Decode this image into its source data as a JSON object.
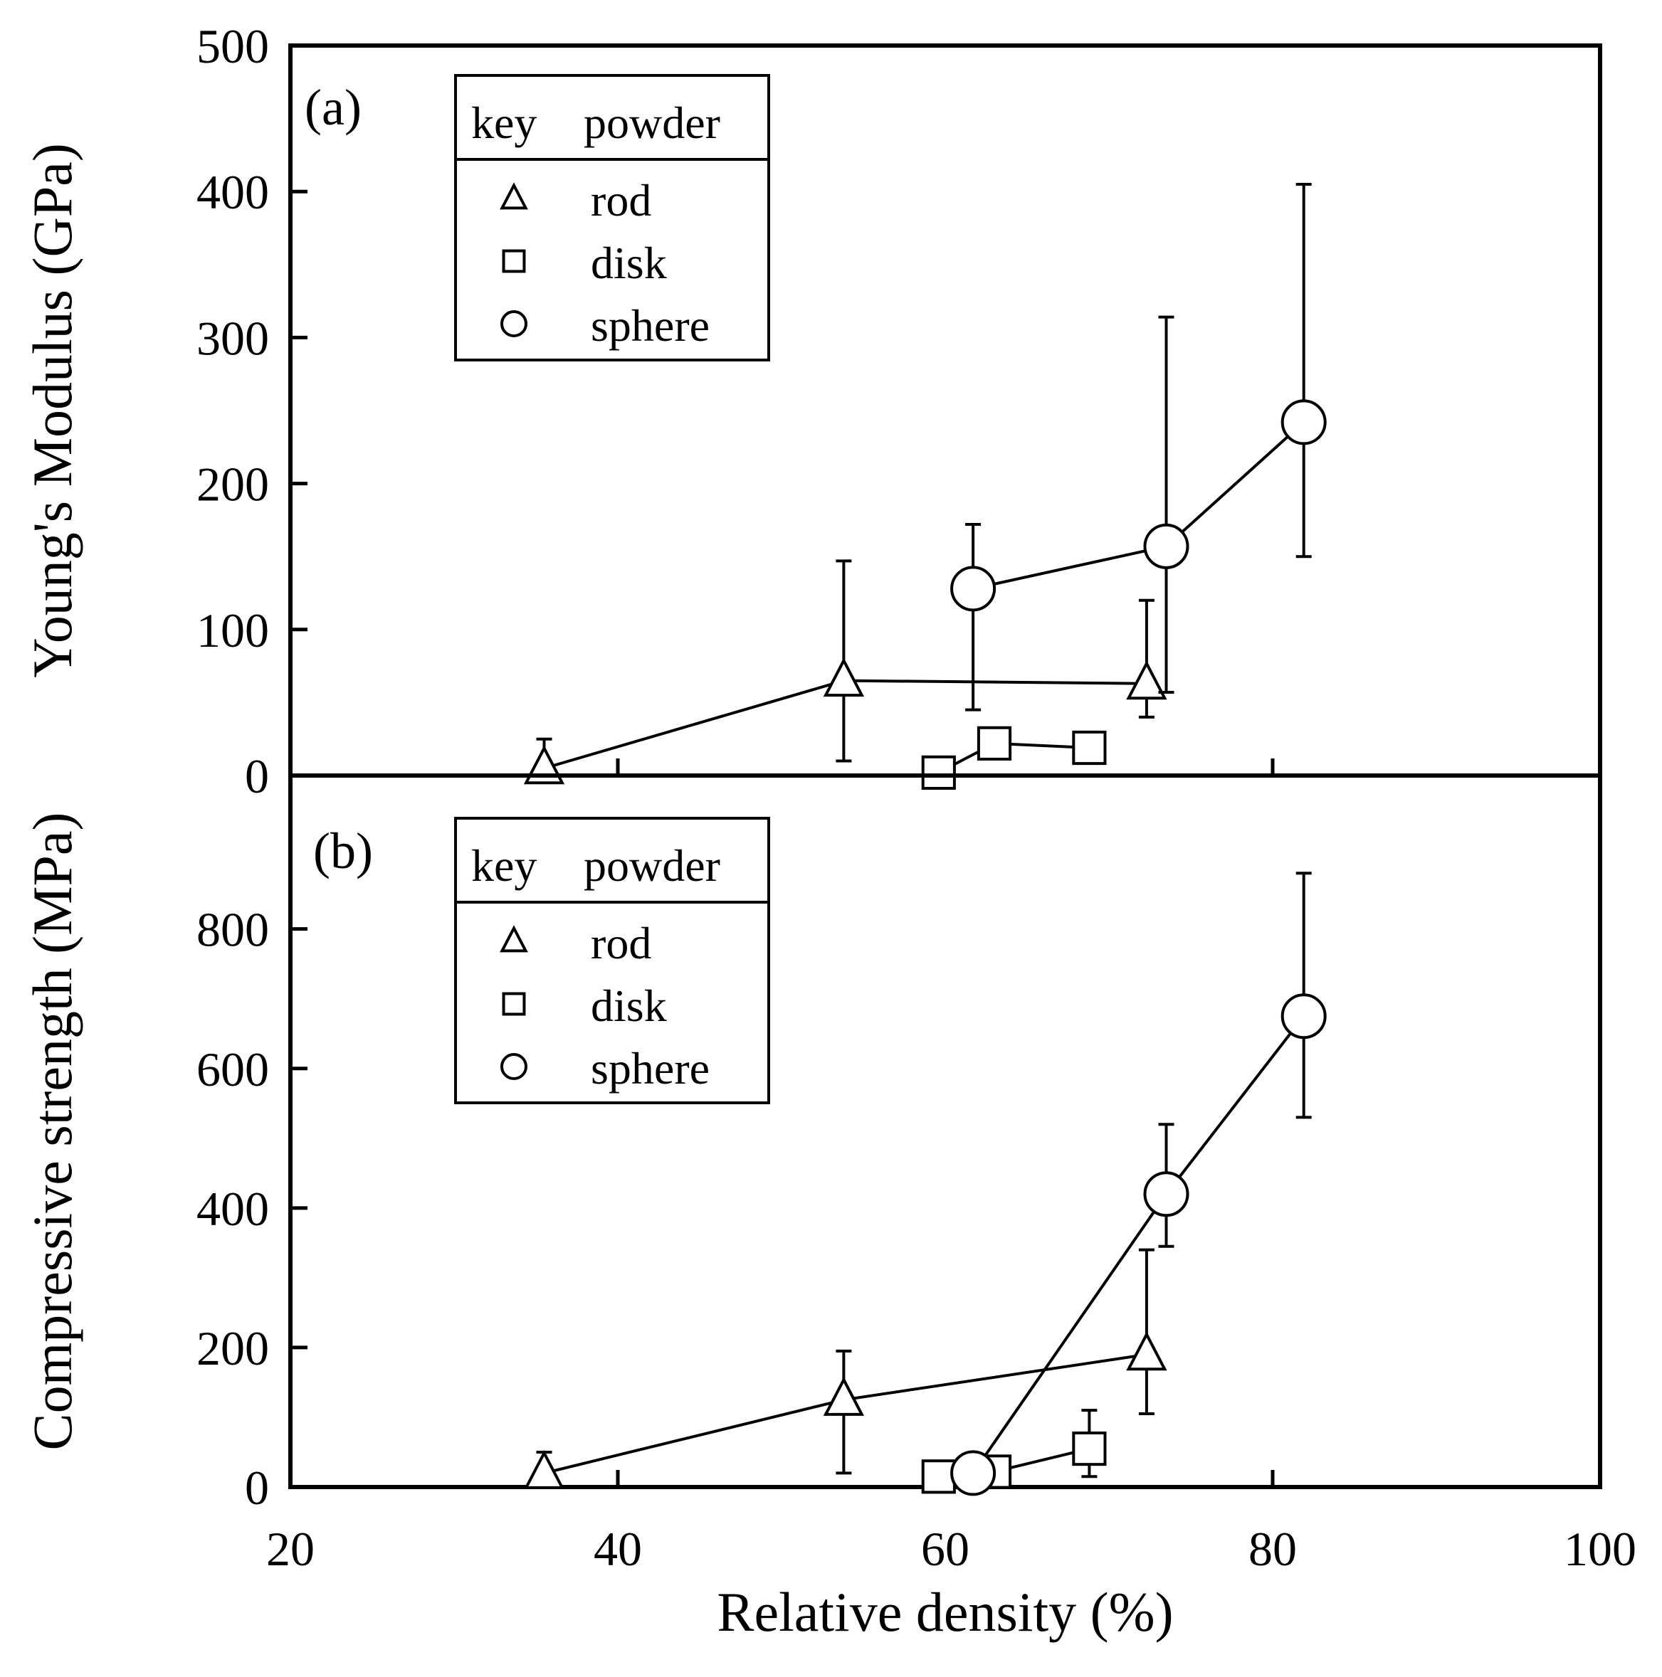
{
  "chart_data": [
    {
      "panel": "(a)",
      "type": "line",
      "xlabel": "Relative density (%)",
      "ylabel": "Young's Modulus (GPa)",
      "xlim": [
        20,
        100
      ],
      "ylim": [
        0,
        500
      ],
      "xticks": [
        20,
        40,
        60,
        80,
        100
      ],
      "yticks": [
        0,
        100,
        200,
        300,
        400,
        500
      ],
      "legend": {
        "position": "top-left",
        "header_key": "key",
        "header_powder": "powder",
        "entries": [
          "rod",
          "disk",
          "sphere"
        ]
      },
      "series": [
        {
          "name": "rod",
          "marker": "triangle",
          "points": [
            {
              "x": 35.5,
              "y": 5,
              "err_low": 0,
              "err_high": 20
            },
            {
              "x": 53.8,
              "y": 65,
              "err_low": 55,
              "err_high": 82
            },
            {
              "x": 72.3,
              "y": 63,
              "err_low": 23,
              "err_high": 57
            }
          ]
        },
        {
          "name": "disk",
          "marker": "square",
          "points": [
            {
              "x": 59.6,
              "y": 2,
              "err_low": 0,
              "err_high": 0
            },
            {
              "x": 63.0,
              "y": 22,
              "err_low": 0,
              "err_high": 0
            },
            {
              "x": 68.8,
              "y": 19,
              "err_low": 0,
              "err_high": 0
            }
          ]
        },
        {
          "name": "sphere",
          "marker": "circle",
          "points": [
            {
              "x": 61.7,
              "y": 128,
              "err_low": 83,
              "err_high": 44
            },
            {
              "x": 73.5,
              "y": 157,
              "err_low": 100,
              "err_high": 157
            },
            {
              "x": 81.9,
              "y": 242,
              "err_low": 92,
              "err_high": 163
            }
          ]
        }
      ]
    },
    {
      "panel": "(b)",
      "type": "line",
      "xlabel": "Relative density (%)",
      "ylabel": "Compressive strength (MPa)",
      "xlim": [
        20,
        100
      ],
      "ylim": [
        0,
        1020
      ],
      "xticks": [
        20,
        40,
        60,
        80,
        100
      ],
      "yticks": [
        0,
        200,
        400,
        600,
        800
      ],
      "legend": {
        "position": "top-left",
        "header_key": "key",
        "header_powder": "powder",
        "entries": [
          "rod",
          "disk",
          "sphere"
        ]
      },
      "series": [
        {
          "name": "rod",
          "marker": "triangle",
          "points": [
            {
              "x": 35.5,
              "y": 20,
              "err_low": 0,
              "err_high": 30
            },
            {
              "x": 53.8,
              "y": 125,
              "err_low": 105,
              "err_high": 70
            },
            {
              "x": 72.3,
              "y": 190,
              "err_low": 85,
              "err_high": 150
            }
          ]
        },
        {
          "name": "disk",
          "marker": "square",
          "points": [
            {
              "x": 59.6,
              "y": 15,
              "err_low": 0,
              "err_high": 0
            },
            {
              "x": 63.0,
              "y": 22,
              "err_low": 0,
              "err_high": 0
            },
            {
              "x": 68.8,
              "y": 55,
              "err_low": 40,
              "err_high": 55
            }
          ]
        },
        {
          "name": "sphere",
          "marker": "circle",
          "points": [
            {
              "x": 61.7,
              "y": 20,
              "err_low": 0,
              "err_high": 0
            },
            {
              "x": 73.5,
              "y": 420,
              "err_low": 75,
              "err_high": 100
            },
            {
              "x": 81.9,
              "y": 675,
              "err_low": 145,
              "err_high": 205
            }
          ]
        }
      ]
    }
  ]
}
